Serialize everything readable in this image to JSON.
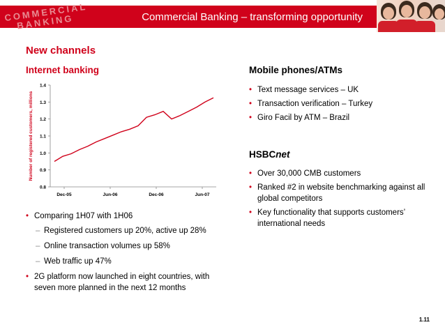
{
  "header": {
    "title": "Commercial Banking – transforming opportunity",
    "logo_text_line1": "COMMERCIAL",
    "logo_text_line2": "BANKING",
    "bar_color": "#d0021b"
  },
  "section_title": "New channels",
  "internet_banking": {
    "heading": "Internet banking",
    "bullets": [
      {
        "text": "Comparing 1H07 with 1H06",
        "subs": [
          "Registered customers up 20%, active up 28%",
          "Online transaction volumes up 58%",
          "Web traffic up 47%"
        ]
      },
      {
        "text": "2G platform now launched in eight countries, with seven more planned in the next 12 months",
        "subs": []
      }
    ]
  },
  "mobile": {
    "heading": "Mobile phones/ATMs",
    "bullets": [
      "Text message services – UK",
      "Transaction verification – Turkey",
      "Giro Facil by ATM – Brazil"
    ]
  },
  "hsbcnet": {
    "heading_plain": "HSBC",
    "heading_italic": "net",
    "bullets": [
      "Over 30,000 CMB customers",
      "Ranked #2 in website benchmarking against all global competitors",
      "Key functionality that supports customers’ international needs"
    ]
  },
  "page_number": "1.11",
  "chart_data": {
    "type": "line",
    "title": "",
    "xlabel": "",
    "ylabel": "Number of registered customers, millions",
    "ylim": [
      0.8,
      1.4
    ],
    "yticks": [
      "0.8",
      "0.9",
      "1.0",
      "1.1",
      "1.2",
      "1.3",
      "1.4"
    ],
    "xticks": [
      "Dec-05",
      "Jun-06",
      "Dec-06",
      "Jun-07"
    ],
    "grid": false,
    "series": [
      {
        "name": "",
        "color": "#d0021b",
        "values": [
          0.95,
          0.98,
          0.995,
          1.02,
          1.04,
          1.065,
          1.085,
          1.105,
          1.125,
          1.14,
          1.16,
          1.21,
          1.225,
          1.245,
          1.2,
          1.22,
          1.245,
          1.27,
          1.3,
          1.325
        ]
      }
    ]
  }
}
